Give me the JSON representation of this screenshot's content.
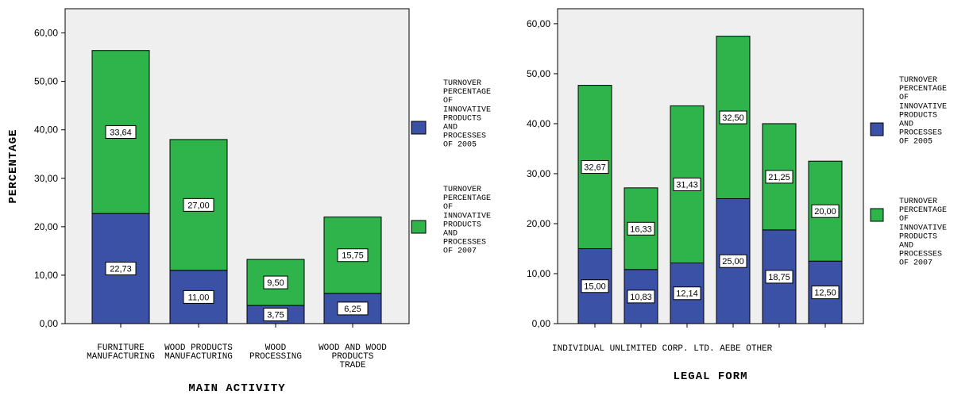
{
  "chart_data": [
    {
      "type": "bar",
      "stacked": true,
      "xlabel": "MAIN ACTIVITY",
      "ylabel": "PERCENTAGE",
      "ylim": [
        0,
        65
      ],
      "yticks": [
        "0,00",
        "10,00",
        "20,00",
        "30,00",
        "40,00",
        "50,00",
        "60,00"
      ],
      "categories": [
        [
          "FURNITURE",
          "MANUFACTURING"
        ],
        [
          "WOOD PRODUCTS",
          "MANUFACTURING"
        ],
        [
          "WOOD",
          "PROCESSING"
        ],
        [
          "WOOD AND WOOD",
          "PRODUCTS",
          "TRADE"
        ]
      ],
      "series": [
        {
          "name": "TURNOVER PERCENTAGE OF INNOVATIVE PRODUCTS AND PROCESSES OF 2005",
          "color": "#3b51a6",
          "values": [
            22.73,
            11.0,
            3.75,
            6.25
          ],
          "labels": [
            "22,73",
            "11,00",
            "3,75",
            "6,25"
          ]
        },
        {
          "name": "TURNOVER PERCENTAGE OF INNOVATIVE PRODUCTS AND PROCESSES OF 2007",
          "color": "#2eb44a",
          "values": [
            33.64,
            27.0,
            9.5,
            15.75
          ],
          "labels": [
            "33,64",
            "27,00",
            "9,50",
            "15,75"
          ]
        }
      ],
      "legend": {
        "position": "right",
        "entries": [
          [
            "TURNOVER",
            "PERCENTAGE",
            "OF",
            "INNOVATIVE",
            "PRODUCTS",
            "AND",
            "PROCESSES",
            "OF 2005"
          ],
          [
            "TURNOVER",
            "PERCENTAGE",
            "OF",
            "INNOVATIVE",
            "PRODUCTS",
            "AND",
            "PROCESSES",
            "OF 2007"
          ]
        ]
      }
    },
    {
      "type": "bar",
      "stacked": true,
      "xlabel": "LEGAL FORM",
      "ylabel": "",
      "ylim": [
        0,
        63
      ],
      "yticks": [
        "0,00",
        "10,00",
        "20,00",
        "30,00",
        "40,00",
        "50,00",
        "60,00"
      ],
      "categories": [
        [
          "INDIVIDUAL"
        ],
        [
          "UNLIMITED"
        ],
        [
          "CORP."
        ],
        [
          "LTD."
        ],
        [
          "AEBE"
        ],
        [
          "OTHER"
        ]
      ],
      "series": [
        {
          "name": "TURNOVER PERCENTAGE OF INNOVATIVE PRODUCTS AND PROCESSES OF 2005",
          "color": "#3b51a6",
          "values": [
            15.0,
            10.83,
            12.14,
            25.0,
            18.75,
            12.5
          ],
          "labels": [
            "15,00",
            "10,83",
            "12,14",
            "25,00",
            "18,75",
            "12,50"
          ]
        },
        {
          "name": "TURNOVER PERCENTAGE OF INNOVATIVE PRODUCTS AND PROCESSES OF 2007",
          "color": "#2eb44a",
          "values": [
            32.67,
            16.33,
            31.43,
            32.5,
            21.25,
            20.0
          ],
          "labels": [
            "32,67",
            "16,33",
            "31,43",
            "32,50",
            "21,25",
            "20,00"
          ]
        }
      ],
      "legend": {
        "position": "right",
        "entries": [
          [
            "TURNOVER",
            "PERCENTAGE",
            "OF",
            "INNOVATIVE",
            "PRODUCTS",
            "AND",
            "PROCESSES",
            "OF 2005"
          ],
          [
            "TURNOVER",
            "PERCENTAGE",
            "OF",
            "INNOVATIVE",
            "PRODUCTS",
            "AND",
            "PROCESSES",
            "OF 2007"
          ]
        ]
      }
    }
  ]
}
